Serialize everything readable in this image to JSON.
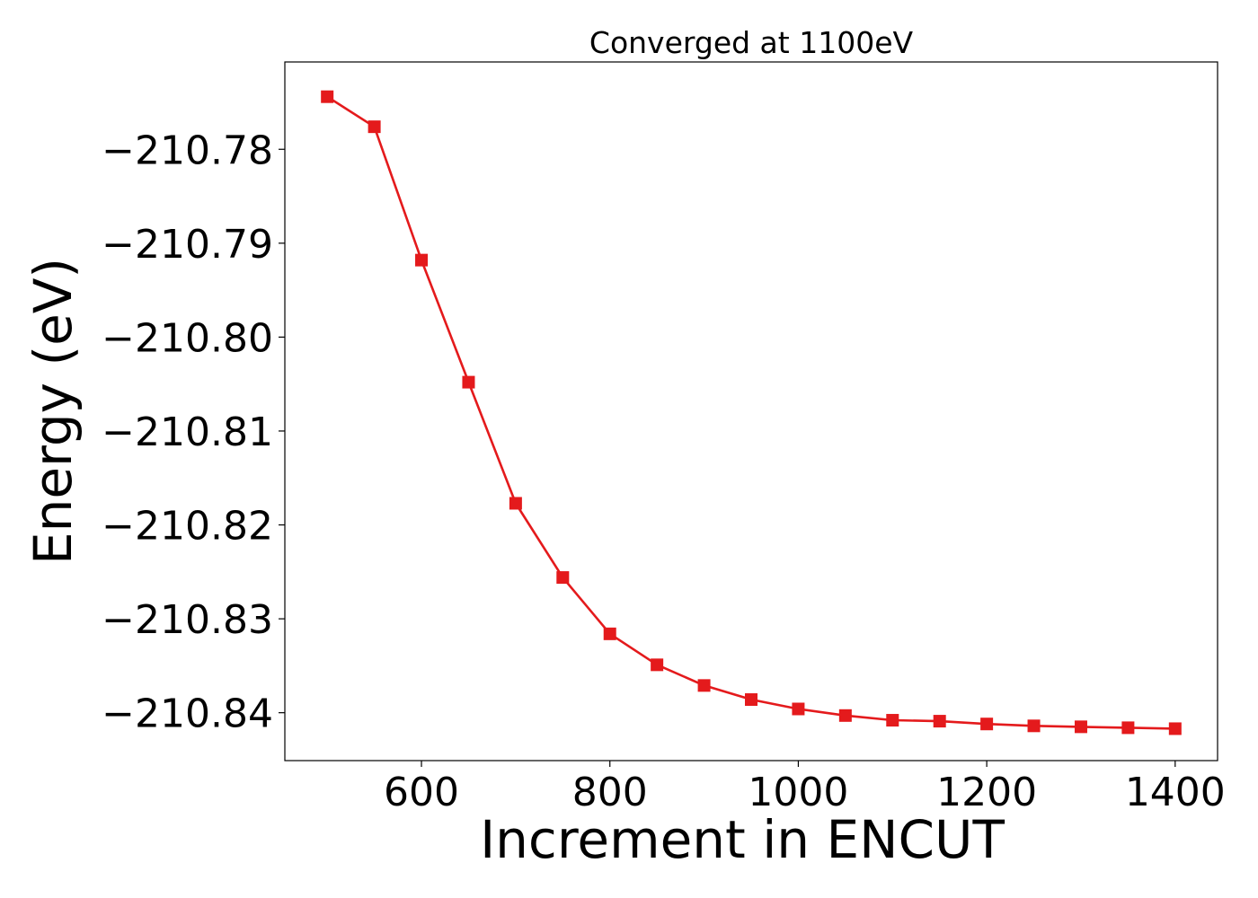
{
  "chart_data": {
    "type": "line",
    "title": "Converged at 1100eV",
    "xlabel": "Increment in ENCUT",
    "ylabel": "Energy (eV)",
    "xlim": [
      455,
      1445
    ],
    "ylim": [
      -210.8451,
      -210.7707
    ],
    "xticks": [
      600,
      800,
      1000,
      1200,
      1400
    ],
    "xtick_labels": [
      "600",
      "800",
      "1000",
      "1200",
      "1400"
    ],
    "yticks": [
      -210.78,
      -210.79,
      -210.8,
      -210.81,
      -210.82,
      -210.83,
      -210.84
    ],
    "ytick_labels": [
      "−210.78",
      "−210.79",
      "−210.80",
      "−210.81",
      "−210.82",
      "−210.83",
      "−210.84"
    ],
    "grid": false,
    "series": [
      {
        "color": "#e41a1c",
        "marker": "square",
        "x": [
          500,
          550,
          600,
          650,
          700,
          750,
          800,
          850,
          900,
          950,
          1000,
          1050,
          1100,
          1150,
          1200,
          1250,
          1300,
          1350,
          1400
        ],
        "y": [
          -210.7744,
          -210.7776,
          -210.7918,
          -210.8048,
          -210.8177,
          -210.8256,
          -210.8316,
          -210.8349,
          -210.8371,
          -210.8386,
          -210.8396,
          -210.8403,
          -210.8408,
          -210.8409,
          -210.8412,
          -210.8414,
          -210.8415,
          -210.8416,
          -210.8417
        ]
      }
    ]
  }
}
